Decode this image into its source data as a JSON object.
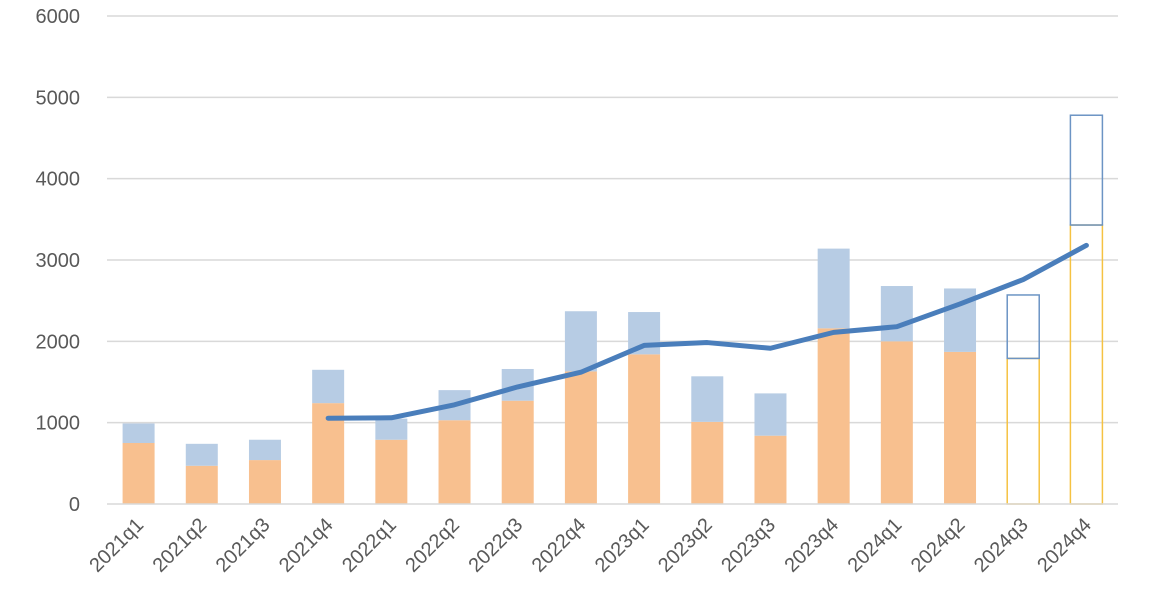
{
  "chart_data": {
    "type": "bar",
    "categories": [
      "2021q1",
      "2021q2",
      "2021q3",
      "2021q4",
      "2022q1",
      "2022q2",
      "2022q3",
      "2022q4",
      "2023q1",
      "2023q2",
      "2023q3",
      "2023q4",
      "2024q1",
      "2024q2",
      "2024q3",
      "2024q4"
    ],
    "ylim": [
      0,
      6000
    ],
    "yticks": [
      0,
      1000,
      2000,
      3000,
      4000,
      5000,
      6000
    ],
    "grid": true,
    "series": [
      {
        "kind": "stacked-bar-base",
        "color": "#F8C08F",
        "values": [
          750,
          470,
          540,
          1240,
          790,
          1030,
          1270,
          1630,
          1840,
          1010,
          840,
          2160,
          2000,
          1870,
          null,
          null
        ]
      },
      {
        "kind": "stacked-bar-top",
        "color": "#B7CCE4",
        "values": [
          240,
          270,
          250,
          410,
          260,
          370,
          390,
          740,
          520,
          560,
          520,
          980,
          680,
          780,
          null,
          null
        ]
      },
      {
        "kind": "projected-base-outline",
        "color": "#F5C242",
        "values": [
          null,
          null,
          null,
          null,
          null,
          null,
          null,
          null,
          null,
          null,
          null,
          null,
          null,
          null,
          1790,
          3430
        ]
      },
      {
        "kind": "projected-top-outline",
        "color": "#6C94C4",
        "values": [
          null,
          null,
          null,
          null,
          null,
          null,
          null,
          null,
          null,
          null,
          null,
          null,
          null,
          null,
          780,
          1350
        ]
      },
      {
        "kind": "line",
        "color": "#4A7EBB",
        "values": [
          null,
          null,
          null,
          1055,
          1060,
          1220,
          1440,
          1620,
          1950,
          1985,
          1915,
          2110,
          2180,
          2460,
          2760,
          3180
        ]
      }
    ]
  }
}
